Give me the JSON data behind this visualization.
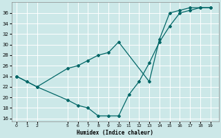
{
  "xlabel": "Humidex (Indice chaleur)",
  "bg_color": "#cce8e8",
  "grid_color": "#ffffff",
  "line_color": "#006666",
  "xlim": [
    -0.5,
    19.8
  ],
  "ylim": [
    15.5,
    38
  ],
  "x_ticks": [
    0,
    1,
    2,
    5,
    6,
    7,
    8,
    9,
    10,
    11,
    12,
    13,
    14,
    15,
    16,
    17,
    18,
    19
  ],
  "y_ticks": [
    16,
    18,
    20,
    22,
    24,
    26,
    28,
    30,
    32,
    34,
    36
  ],
  "line1_x": [
    0,
    1,
    2,
    5,
    6,
    7,
    8,
    9,
    10,
    11,
    12,
    13,
    14,
    15,
    16,
    17,
    18,
    19
  ],
  "line1_y": [
    24,
    23,
    22,
    19.5,
    18.5,
    18,
    16.5,
    16.5,
    16.5,
    20.5,
    23,
    26.5,
    30.5,
    33.5,
    36,
    36.5,
    37,
    37
  ],
  "line2_x": [
    0,
    2,
    5,
    6,
    7,
    8,
    9,
    10,
    13,
    14,
    15,
    16,
    17,
    18,
    19
  ],
  "line2_y": [
    24,
    22,
    25.5,
    26,
    27,
    28,
    28.5,
    30.5,
    23,
    31,
    36,
    36.5,
    37,
    37,
    37
  ]
}
